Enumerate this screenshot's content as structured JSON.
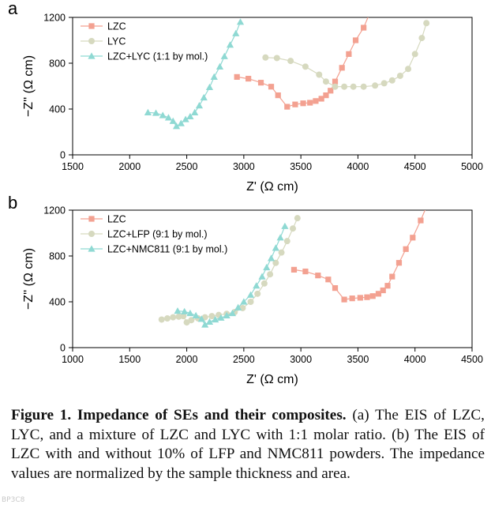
{
  "chart_data": [
    {
      "type": "scatter",
      "panel_label": "a",
      "title": "",
      "xlabel": "Z' (Ω cm)",
      "ylabel": "−Z'' (Ω cm)",
      "xlim": [
        1500,
        5000
      ],
      "ylim": [
        0,
        1200
      ],
      "xticks": [
        1500,
        2000,
        2500,
        3000,
        3500,
        4000,
        4500,
        5000
      ],
      "yticks": [
        0,
        400,
        800,
        1200
      ],
      "legend_position": "top-left",
      "series": [
        {
          "name": "LZC",
          "color": "#f3a191",
          "marker": "square",
          "x": [
            2940,
            3040,
            3150,
            3240,
            3300,
            3380,
            3450,
            3520,
            3580,
            3630,
            3680,
            3720,
            3760,
            3800,
            3860,
            3920,
            3980,
            4050,
            4100
          ],
          "y": [
            680,
            665,
            630,
            595,
            520,
            420,
            440,
            450,
            455,
            470,
            490,
            520,
            560,
            640,
            760,
            880,
            1000,
            1110,
            1230
          ]
        },
        {
          "name": "LYC",
          "color": "#d6d9bf",
          "marker": "circle",
          "x": [
            3190,
            3290,
            3410,
            3540,
            3660,
            3720,
            3800,
            3880,
            3960,
            4050,
            4150,
            4230,
            4300,
            4370,
            4440,
            4500,
            4560,
            4600
          ],
          "y": [
            850,
            845,
            820,
            770,
            700,
            640,
            595,
            595,
            595,
            595,
            605,
            625,
            650,
            690,
            750,
            880,
            1020,
            1150
          ]
        },
        {
          "name": "LZC+LYC (1:1 by mol.)",
          "color": "#8fd9d3",
          "marker": "triangle",
          "x": [
            2160,
            2230,
            2290,
            2340,
            2380,
            2410,
            2450,
            2490,
            2530,
            2570,
            2610,
            2650,
            2700,
            2740,
            2790,
            2830,
            2880,
            2930,
            2970
          ],
          "y": [
            370,
            365,
            345,
            325,
            295,
            250,
            275,
            310,
            335,
            370,
            430,
            500,
            590,
            680,
            770,
            860,
            960,
            1060,
            1160
          ]
        }
      ]
    },
    {
      "type": "scatter",
      "panel_label": "b",
      "title": "",
      "xlabel": "Z' (Ω cm)",
      "ylabel": "−Z'' (Ω cm)",
      "xlim": [
        1000,
        4500
      ],
      "ylim": [
        0,
        1200
      ],
      "xticks": [
        1000,
        1500,
        2000,
        2500,
        3000,
        3500,
        4000,
        4500
      ],
      "yticks": [
        0,
        400,
        800,
        1200
      ],
      "legend_position": "top-left",
      "series": [
        {
          "name": "LZC",
          "color": "#f3a191",
          "marker": "square",
          "x": [
            2940,
            3040,
            3150,
            3240,
            3300,
            3380,
            3450,
            3520,
            3580,
            3630,
            3680,
            3720,
            3760,
            3800,
            3860,
            3920,
            3980,
            4050,
            4100
          ],
          "y": [
            680,
            665,
            630,
            595,
            520,
            420,
            430,
            435,
            440,
            450,
            470,
            500,
            540,
            620,
            740,
            860,
            960,
            1110,
            1230
          ]
        },
        {
          "name": "LZC+LFP (9:1 by mol.)",
          "color": "#d6d9bf",
          "marker": "circle",
          "x": [
            1780,
            1830,
            1880,
            1930,
            1970,
            2000,
            2040,
            2100,
            2160,
            2220,
            2280,
            2350,
            2420,
            2490,
            2560,
            2620,
            2680,
            2730,
            2780,
            2830,
            2880,
            2930,
            2970
          ],
          "y": [
            245,
            255,
            265,
            270,
            275,
            220,
            240,
            255,
            265,
            275,
            285,
            295,
            310,
            345,
            400,
            470,
            560,
            640,
            740,
            830,
            930,
            1040,
            1130
          ]
        },
        {
          "name": "LZC+NMC811 (9:1 by mol.)",
          "color": "#8fd9d3",
          "marker": "triangle",
          "x": [
            1920,
            1980,
            2030,
            2080,
            2130,
            2160,
            2200,
            2250,
            2300,
            2350,
            2400,
            2450,
            2500,
            2560,
            2610,
            2660,
            2700,
            2740,
            2780,
            2820,
            2860
          ],
          "y": [
            320,
            315,
            300,
            280,
            250,
            200,
            225,
            245,
            260,
            280,
            300,
            350,
            400,
            460,
            540,
            620,
            700,
            780,
            870,
            960,
            1060
          ]
        }
      ]
    }
  ],
  "caption": {
    "lead": "Figure 1. Impedance of SEs and their composites.",
    "body": " (a) The EIS of LZC, LYC, and a mixture of LZC and LYC with 1:1 molar ratio. (b) The EIS of LZC with and without 10% of LFP and NMC811 powders. The impedance values are normalized by the sample thickness and area."
  },
  "watermark": "BP3C8"
}
